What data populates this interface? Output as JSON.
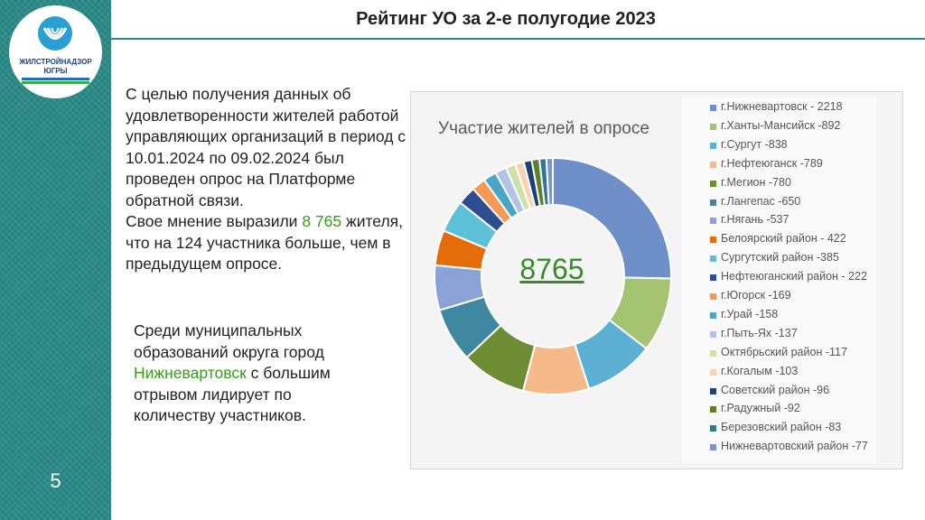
{
  "sidebar": {
    "page_number": "5"
  },
  "logo": {
    "line1": "ЖИЛСТРОЙНАДЗОР",
    "line2": "ЮГРЫ"
  },
  "slide_title": "Рейтинг УО за 2-е полугодие 2023",
  "paragraph1": {
    "text_a": "С целью получения данных об удовлетворенности жителей работой управляющих организаций в период с 10.01.2024 по 09.02.2024 был проведен опрос на Платформе обратной связи.",
    "text_b": "Свое мнение выразили ",
    "highlight": "8 765",
    "text_c": " жителя, что на 124 участника больше, чем в предыдущем опросе."
  },
  "paragraph2": {
    "text_a": "Среди муниципальных образований округа город ",
    "highlight": "Нижневартовск",
    "text_b": " с большим отрывом лидирует по количеству участников."
  },
  "chart_data": {
    "type": "pie",
    "title": "Участие жителей в опросе",
    "center_label": "8765",
    "legend_position": "right",
    "series": [
      {
        "label": "г.Нижневартовск - 2218",
        "value": 2218,
        "color": "#6f8fc9"
      },
      {
        "label": "г.Ханты-Мансийск -892",
        "value": 892,
        "color": "#a4c472"
      },
      {
        "label": "г.Сургут -838",
        "value": 838,
        "color": "#5bb0d3"
      },
      {
        "label": "г.Нефтеюганск -789",
        "value": 789,
        "color": "#f5b98a"
      },
      {
        "label": "г.Мегион -780",
        "value": 780,
        "color": "#6d8c34"
      },
      {
        "label": "г.Лангепас -650",
        "value": 650,
        "color": "#3e87a1"
      },
      {
        "label": "г.Нягань -537",
        "value": 537,
        "color": "#8aa2d6"
      },
      {
        "label": "Белоярский район - 422",
        "value": 422,
        "color": "#e46c0a"
      },
      {
        "label": "Сургутский район -385",
        "value": 385,
        "color": "#5cc0d7"
      },
      {
        "label": "Нефтеюганский район - 222",
        "value": 222,
        "color": "#2e4e8f"
      },
      {
        "label": "г.Югорск -169",
        "value": 169,
        "color": "#f49a55"
      },
      {
        "label": "г.Урай -158",
        "value": 158,
        "color": "#4aa6c4"
      },
      {
        "label": "г.Пыть-Ях -137",
        "value": 137,
        "color": "#b3c3e6"
      },
      {
        "label": "Октябрьский район -117",
        "value": 117,
        "color": "#cfe0a8"
      },
      {
        "label": "г.Когалым -103",
        "value": 103,
        "color": "#f8d3b5"
      },
      {
        "label": "Советский район -96",
        "value": 96,
        "color": "#1f3f7a"
      },
      {
        "label": "г.Радужный -92",
        "value": 92,
        "color": "#5f7f28"
      },
      {
        "label": "Березовский район -83",
        "value": 83,
        "color": "#2f7a93"
      },
      {
        "label": "Нижневартовский район -77",
        "value": 77,
        "color": "#7b95cf"
      }
    ]
  }
}
